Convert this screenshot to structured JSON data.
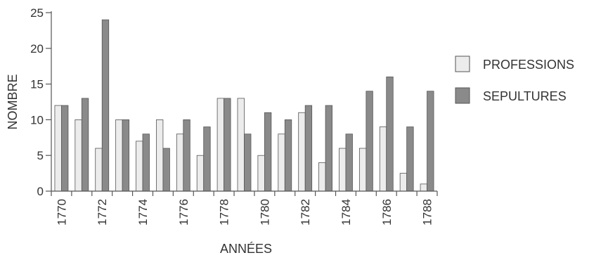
{
  "chart_data": {
    "type": "bar",
    "title": "",
    "xlabel": "ANNÉES",
    "ylabel": "NOMBRE",
    "ylim": [
      0,
      25
    ],
    "yticks": [
      0,
      5,
      10,
      15,
      20,
      25
    ],
    "categories": [
      "1770",
      "1771",
      "1772",
      "1773",
      "1774",
      "1775",
      "1776",
      "1777",
      "1778",
      "1779",
      "1780",
      "1781",
      "1782",
      "1783",
      "1784",
      "1785",
      "1786",
      "1787",
      "1788"
    ],
    "x_tick_labels": [
      "1770",
      "1772",
      "1774",
      "1776",
      "1778",
      "1780",
      "1782",
      "1784",
      "1786",
      "1788"
    ],
    "series": [
      {
        "name": "PROFESSIONS",
        "color": "#ececec",
        "values": [
          12,
          10,
          6,
          10,
          7,
          10,
          8,
          5,
          13,
          13,
          5,
          8,
          11,
          4,
          6,
          6,
          9,
          2.5,
          1
        ]
      },
      {
        "name": "SEPULTURES",
        "color": "#8a8a8a",
        "values": [
          12,
          13,
          24,
          10,
          8,
          6,
          10,
          9,
          13,
          8,
          11,
          10,
          12,
          12,
          8,
          14,
          16,
          9,
          14
        ]
      }
    ],
    "legend_position": "right",
    "grid": false
  }
}
